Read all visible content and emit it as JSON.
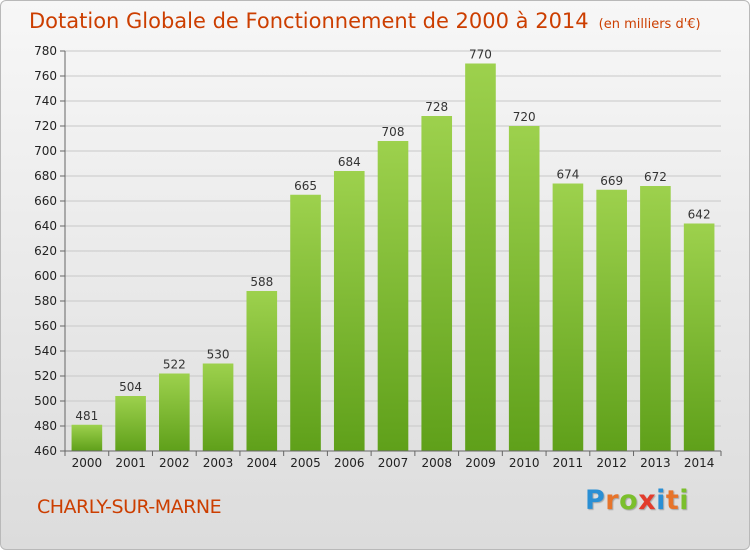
{
  "title": "Dotation Globale de Fonctionnement de 2000 à 2014",
  "unit": "(en milliers d'€)",
  "town": "CHARLY-SUR-MARNE",
  "logo": {
    "letters": [
      "P",
      "r",
      "o",
      "x",
      "i",
      "t",
      "i"
    ],
    "colors": [
      "#2a8fd4",
      "#e7742a",
      "#7bbf2c",
      "#e23c2c",
      "#2a8fd4",
      "#e7742a",
      "#7bbf2c"
    ]
  },
  "chart_data": {
    "type": "bar",
    "categories": [
      "2000",
      "2001",
      "2002",
      "2003",
      "2004",
      "2005",
      "2006",
      "2007",
      "2008",
      "2009",
      "2010",
      "2011",
      "2012",
      "2013",
      "2014"
    ],
    "values": [
      481,
      504,
      522,
      530,
      588,
      665,
      684,
      708,
      728,
      770,
      720,
      674,
      669,
      672,
      642
    ],
    "ylim": [
      460,
      780
    ],
    "ytick_step": 20,
    "grid": true,
    "bar_color_top": "#9dd14d",
    "bar_color_bottom": "#5fa01a"
  }
}
